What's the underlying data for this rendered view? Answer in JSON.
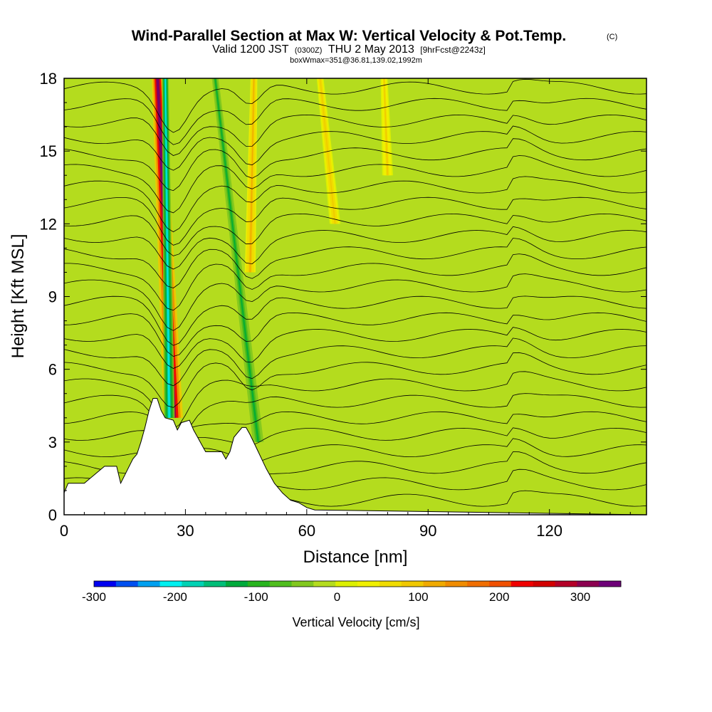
{
  "title": {
    "main": "Wind-Parallel Section at Max W: Vertical Velocity & Pot.Temp.",
    "copyright": "(C)",
    "valid_prefix": "Valid 1200 JST",
    "valid_utc": "(0300Z)",
    "valid_date": "THU 2 May 2013",
    "forecast_tag": "[9hrFcst@2243z]",
    "box_info": "boxWmax=351@36.81,139.02,1992m"
  },
  "chart_data": {
    "type": "heatmap",
    "xlabel": "Distance [nm]",
    "ylabel": "Height [Kft MSL]",
    "xlim": [
      0,
      144
    ],
    "ylim": [
      0,
      18
    ],
    "x_ticks": [
      0,
      30,
      60,
      90,
      120
    ],
    "y_ticks": [
      0,
      3,
      6,
      9,
      12,
      15,
      18
    ],
    "grid": false,
    "colorbar": {
      "label": "Vertical Velocity [cm/s]",
      "range": [
        -300,
        350
      ],
      "ticks": [
        -300,
        -200,
        -100,
        0,
        100,
        200,
        300
      ],
      "colors": [
        "#0000f0",
        "#0050f0",
        "#00a0f0",
        "#00f0f0",
        "#00d2b4",
        "#00be78",
        "#00aa3c",
        "#28b41e",
        "#50be1e",
        "#82c81e",
        "#b4dc1e",
        "#dcf000",
        "#f0f000",
        "#f0dc00",
        "#f0c800",
        "#f0aa00",
        "#f08c00",
        "#f06e00",
        "#f05000",
        "#f00000",
        "#d20000",
        "#b40028",
        "#8c0050",
        "#6e0078"
      ],
      "zero_color": "#dcf000"
    },
    "terrain_profile": {
      "x": [
        0,
        1,
        3,
        5,
        10,
        13,
        14,
        17,
        18,
        19,
        20,
        21,
        22,
        23,
        24,
        25,
        27,
        28,
        29,
        31,
        32,
        33,
        34,
        35,
        37,
        39,
        40,
        41,
        42,
        44,
        45,
        46,
        48,
        50,
        52,
        54,
        56,
        58,
        60,
        62,
        144
      ],
      "height": [
        0.9,
        1.3,
        1.3,
        1.3,
        2.0,
        2.0,
        1.3,
        2.3,
        2.5,
        3.0,
        3.6,
        4.3,
        4.8,
        4.8,
        4.3,
        4.0,
        3.9,
        3.5,
        3.8,
        3.9,
        3.5,
        3.2,
        2.9,
        2.6,
        2.6,
        2.6,
        2.3,
        2.6,
        3.2,
        3.6,
        3.6,
        3.3,
        2.6,
        1.9,
        1.3,
        0.9,
        0.6,
        0.5,
        0.3,
        0.2,
        0.0
      ]
    },
    "updraft_bands": [
      {
        "x_base": 27,
        "z_base": 4,
        "x_top": 23,
        "w_max": 351
      },
      {
        "x_base": 46,
        "z_base": 10,
        "x_top": 47,
        "w_max": 120
      },
      {
        "x_base": 67,
        "z_base": 12,
        "x_top": 63,
        "w_max": 90
      },
      {
        "x_base": 80,
        "z_base": 14,
        "x_top": 79,
        "w_max": 80
      }
    ],
    "downdraft_bands": [
      {
        "x_base": 26,
        "z_base": 4,
        "x_top": 25,
        "w_min": -200
      },
      {
        "x_base": 48,
        "z_base": 3,
        "x_top": 37,
        "w_min": -120
      }
    ]
  }
}
